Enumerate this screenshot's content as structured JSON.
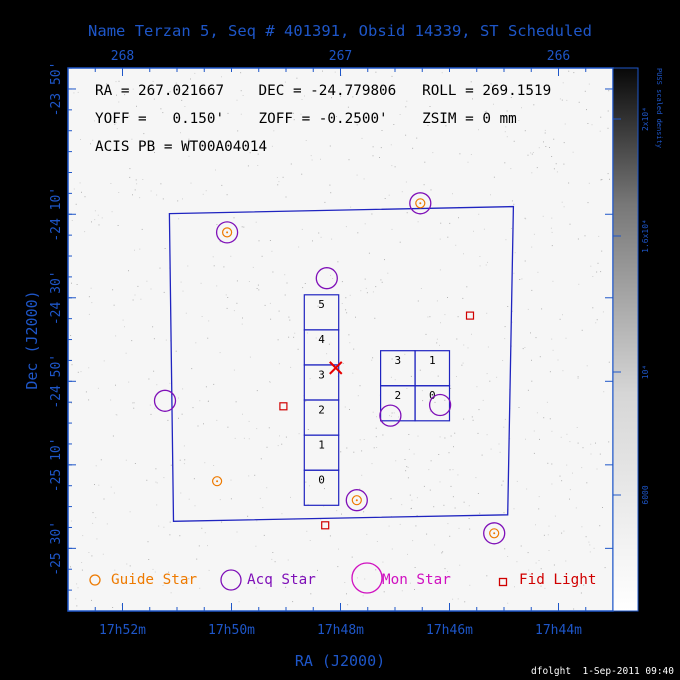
{
  "title": "Name Terzan 5, Seq # 401391, Obsid 14339, ST Scheduled",
  "info_lines": [
    "RA = 267.021667    DEC = -24.779806   ROLL = 269.1519",
    "YOFF =   0.150'    ZOFF = -0.2500'    ZSIM = 0 mm",
    "ACIS PB = WT00A04014"
  ],
  "footer": "dfolght  1-Sep-2011 09:40",
  "colors": {
    "axis": "#1e56c8",
    "plot_bg": "#f6f6f6",
    "guide": "#ee7a00",
    "acq": "#7f10b8",
    "mon": "#d010c0",
    "fid": "#d00000",
    "chip_label": "#000000",
    "aimpoint": "#e60000"
  },
  "chart_data": {
    "type": "scatter",
    "xlabel": "RA (J2000)",
    "ylabel": "Dec (J2000)",
    "xlim": [
      268.25,
      265.75
    ],
    "ylim": [
      -25.75,
      -23.583
    ],
    "x_ticks_bottom": [
      {
        "value": 268.0,
        "label": "17h52m"
      },
      {
        "value": 267.5,
        "label": "17h50m"
      },
      {
        "value": 267.0,
        "label": "17h48m"
      },
      {
        "value": 266.5,
        "label": "17h46m"
      },
      {
        "value": 266.0,
        "label": "17h44m"
      }
    ],
    "x_ticks_top": [
      {
        "value": 268.0,
        "label": "268"
      },
      {
        "value": 267.0,
        "label": "267"
      },
      {
        "value": 266.0,
        "label": "266"
      }
    ],
    "y_ticks": [
      {
        "value": -23.6667,
        "label": "-23 50'"
      },
      {
        "value": -24.1667,
        "label": "-24 10'"
      },
      {
        "value": -24.5,
        "label": "-24 30'"
      },
      {
        "value": -24.8333,
        "label": "-24 50'"
      },
      {
        "value": -25.1667,
        "label": "-25 10'"
      },
      {
        "value": -25.5,
        "label": "-25 30'"
      }
    ],
    "colorbar": {
      "label": "PUSS scaled density",
      "ticks": [
        {
          "value": 20000,
          "label": "2x10⁴"
        },
        {
          "value": 16000,
          "label": "1.6x10⁴"
        },
        {
          "value": 10000,
          "label": "10⁴"
        },
        {
          "value": 6000,
          "label": "6000"
        }
      ]
    },
    "pointing": {
      "ra": 267.0217,
      "dec": -24.7798
    },
    "field_box": [
      {
        "ra": 267.785,
        "dec": -24.164
      },
      {
        "ra": 266.207,
        "dec": -24.136
      },
      {
        "ra": 266.233,
        "dec": -25.366
      },
      {
        "ra": 267.766,
        "dec": -25.392
      }
    ],
    "chips": [
      {
        "label": "5",
        "center": [
          267.087,
          -24.558
        ],
        "w": 0.158,
        "h": 0.14
      },
      {
        "label": "4",
        "center": [
          267.087,
          -24.698
        ],
        "w": 0.158,
        "h": 0.14
      },
      {
        "label": "3",
        "center": [
          267.087,
          -24.838
        ],
        "w": 0.158,
        "h": 0.14
      },
      {
        "label": "2",
        "center": [
          267.087,
          -24.978
        ],
        "w": 0.158,
        "h": 0.14
      },
      {
        "label": "1",
        "center": [
          267.087,
          -25.118
        ],
        "w": 0.158,
        "h": 0.14
      },
      {
        "label": "0",
        "center": [
          267.087,
          -25.258
        ],
        "w": 0.158,
        "h": 0.14
      },
      {
        "label": "3",
        "center": [
          266.737,
          -24.781
        ],
        "w": 0.158,
        "h": 0.14
      },
      {
        "label": "1",
        "center": [
          266.579,
          -24.781
        ],
        "w": 0.158,
        "h": 0.14
      },
      {
        "label": "2",
        "center": [
          266.737,
          -24.921
        ],
        "w": 0.158,
        "h": 0.14
      },
      {
        "label": "0",
        "center": [
          266.579,
          -24.921
        ],
        "w": 0.158,
        "h": 0.14
      }
    ],
    "guide_stars": [
      {
        "ra": 267.52,
        "dec": -24.239
      },
      {
        "ra": 266.634,
        "dec": -24.123
      },
      {
        "ra": 267.566,
        "dec": -25.232
      },
      {
        "ra": 266.925,
        "dec": -25.308
      },
      {
        "ra": 266.295,
        "dec": -25.44
      }
    ],
    "acq_stars": [
      {
        "ra": 267.52,
        "dec": -24.239
      },
      {
        "ra": 266.634,
        "dec": -24.123
      },
      {
        "ra": 267.063,
        "dec": -24.422
      },
      {
        "ra": 267.805,
        "dec": -24.911
      },
      {
        "ra": 266.771,
        "dec": -24.97
      },
      {
        "ra": 266.543,
        "dec": -24.928
      },
      {
        "ra": 266.925,
        "dec": -25.308
      },
      {
        "ra": 266.295,
        "dec": -25.44
      }
    ],
    "fid_lights": [
      {
        "ra": 266.406,
        "dec": -24.571
      },
      {
        "ra": 267.262,
        "dec": -24.933
      },
      {
        "ra": 267.07,
        "dec": -25.408
      }
    ],
    "legend": [
      {
        "type": "guide",
        "label": "Guide Star"
      },
      {
        "type": "acq",
        "label": "Acq Star"
      },
      {
        "type": "mon",
        "label": "Mon Star"
      },
      {
        "type": "fid",
        "label": "Fid Light"
      }
    ]
  }
}
